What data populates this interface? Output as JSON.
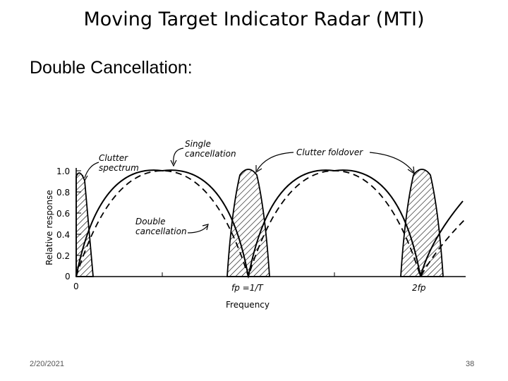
{
  "slide": {
    "title": "Moving Target Indicator Radar (MTI)",
    "subtitle": "Double Cancellation:",
    "date": "2/20/2021",
    "page_number": "38"
  },
  "figure": {
    "y_axis_label": "Relative response",
    "x_axis_label": "Frequency",
    "y_ticks": [
      "1.0",
      "0.8",
      "0.6",
      "0.4",
      "0.2",
      "0"
    ],
    "x_ticks": [
      "0",
      "fp =1/T",
      "2fp"
    ],
    "annotations": {
      "clutter_spectrum_line1": "Clutter",
      "clutter_spectrum_line2": "spectrum",
      "single_cancellation_line1": "Single",
      "single_cancellation_line2": "cancellation",
      "clutter_foldover": "Clutter foldover",
      "double_cancellation_line1": "Double",
      "double_cancellation_line2": "cancellation"
    }
  }
}
